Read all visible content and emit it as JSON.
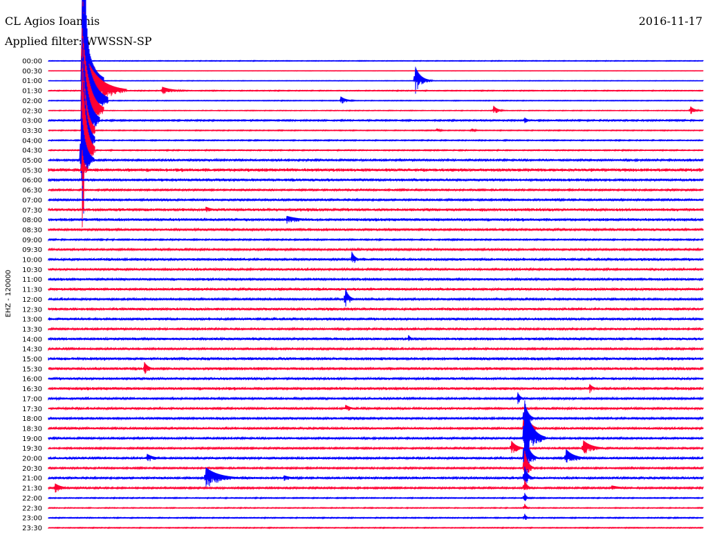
{
  "header": {
    "station": "CL Agios Ioannis",
    "filter": "Applied filter: WWSSN-SP",
    "date": "2016-11-17"
  },
  "chart_data": {
    "type": "line",
    "title": "CL Agios Ioannis",
    "channel_label": "EHZ - 120000",
    "trace_colors": [
      "#0000ff",
      "#ff0033"
    ],
    "time_axis": {
      "start": 0,
      "end": 30,
      "unit": "min"
    },
    "rows": [
      "00:00",
      "00:30",
      "01:00",
      "01:30",
      "02:00",
      "02:30",
      "03:00",
      "03:30",
      "04:00",
      "04:30",
      "05:00",
      "05:30",
      "06:00",
      "06:30",
      "07:00",
      "07:30",
      "08:00",
      "08:30",
      "09:00",
      "09:30",
      "10:00",
      "10:30",
      "11:00",
      "11:30",
      "12:00",
      "12:30",
      "13:00",
      "13:30",
      "14:00",
      "14:30",
      "15:00",
      "15:30",
      "16:00",
      "16:30",
      "17:00",
      "17:30",
      "18:00",
      "18:30",
      "19:00",
      "19:30",
      "20:00",
      "20:30",
      "21:00",
      "21:30",
      "22:00",
      "22:30",
      "23:00",
      "23:30"
    ],
    "noise": [
      0.4,
      0.2,
      0.3,
      0.5,
      0.4,
      0.4,
      0.8,
      0.5,
      0.6,
      0.6,
      1.2,
      1.8,
      1.5,
      1.0,
      1.2,
      1.6,
      1.6,
      1.4,
      0.8,
      1.2,
      1.4,
      1.3,
      1.4,
      1.4,
      1.3,
      1.4,
      1.4,
      1.2,
      1.4,
      1.2,
      1.6,
      1.6,
      1.4,
      1.6,
      1.2,
      1.2,
      1.4,
      1.2,
      1.2,
      1.0,
      1.2,
      1.0,
      1.2,
      1.0,
      0.6,
      0.5,
      0.6,
      0.5
    ],
    "events": [
      {
        "row": 0,
        "t": 1.6,
        "amp": 300,
        "dur": 0.3
      },
      {
        "row": 1,
        "t": 1.55,
        "amp": 120,
        "dur": 0.6
      },
      {
        "row": 2,
        "t": 1.55,
        "amp": 120,
        "dur": 1.0
      },
      {
        "row": 3,
        "t": 1.6,
        "amp": 60,
        "dur": 2.0
      },
      {
        "row": 4,
        "t": 1.55,
        "amp": 120,
        "dur": 1.2
      },
      {
        "row": 5,
        "t": 1.55,
        "amp": 120,
        "dur": 1.0
      },
      {
        "row": 6,
        "t": 1.55,
        "amp": 120,
        "dur": 0.8
      },
      {
        "row": 7,
        "t": 1.55,
        "amp": 120,
        "dur": 0.6
      },
      {
        "row": 8,
        "t": 1.55,
        "amp": 120,
        "dur": 0.6
      },
      {
        "row": 9,
        "t": 1.55,
        "amp": 120,
        "dur": 0.6
      },
      {
        "row": 10,
        "t": 1.5,
        "amp": 80,
        "dur": 0.6
      },
      {
        "row": 11,
        "t": 1.55,
        "amp": 30,
        "dur": 0.3
      },
      {
        "row": 2,
        "t": 16.8,
        "amp": 22,
        "dur": 0.8
      },
      {
        "row": 3,
        "t": 5.2,
        "amp": 6,
        "dur": 1.5
      },
      {
        "row": 4,
        "t": 13.4,
        "amp": 6,
        "dur": 0.8
      },
      {
        "row": 5,
        "t": 20.4,
        "amp": 7,
        "dur": 0.6
      },
      {
        "row": 5,
        "t": 29.4,
        "amp": 7,
        "dur": 0.6
      },
      {
        "row": 6,
        "t": 21.8,
        "amp": 5,
        "dur": 0.5
      },
      {
        "row": 7,
        "t": 17.8,
        "amp": 3,
        "dur": 0.5
      },
      {
        "row": 7,
        "t": 19.4,
        "amp": 3,
        "dur": 0.5
      },
      {
        "row": 15,
        "t": 7.2,
        "amp": 5,
        "dur": 1.0
      },
      {
        "row": 16,
        "t": 10.9,
        "amp": 6,
        "dur": 2.0
      },
      {
        "row": 20,
        "t": 13.9,
        "amp": 12,
        "dur": 0.5
      },
      {
        "row": 24,
        "t": 13.6,
        "amp": 18,
        "dur": 0.5
      },
      {
        "row": 28,
        "t": 16.5,
        "amp": 6,
        "dur": 0.4
      },
      {
        "row": 31,
        "t": 4.4,
        "amp": 10,
        "dur": 0.6
      },
      {
        "row": 34,
        "t": 21.5,
        "amp": 10,
        "dur": 0.4
      },
      {
        "row": 36,
        "t": 21.8,
        "amp": 30,
        "dur": 0.5
      },
      {
        "row": 37,
        "t": 21.8,
        "amp": 40,
        "dur": 0.6
      },
      {
        "row": 38,
        "t": 21.8,
        "amp": 60,
        "dur": 1.0
      },
      {
        "row": 39,
        "t": 21.2,
        "amp": 12,
        "dur": 0.8
      },
      {
        "row": 40,
        "t": 21.8,
        "amp": 50,
        "dur": 0.6
      },
      {
        "row": 41,
        "t": 21.8,
        "amp": 30,
        "dur": 0.5
      },
      {
        "row": 42,
        "t": 21.8,
        "amp": 20,
        "dur": 0.5
      },
      {
        "row": 43,
        "t": 21.8,
        "amp": 15,
        "dur": 0.4
      },
      {
        "row": 44,
        "t": 21.8,
        "amp": 10,
        "dur": 0.3
      },
      {
        "row": 45,
        "t": 21.8,
        "amp": 8,
        "dur": 0.3
      },
      {
        "row": 46,
        "t": 21.8,
        "amp": 8,
        "dur": 0.3
      },
      {
        "row": 39,
        "t": 24.5,
        "amp": 12,
        "dur": 1.3
      },
      {
        "row": 40,
        "t": 23.7,
        "amp": 14,
        "dur": 1.2
      },
      {
        "row": 40,
        "t": 4.5,
        "amp": 7,
        "dur": 1.0
      },
      {
        "row": 42,
        "t": 7.2,
        "amp": 16,
        "dur": 2.0
      },
      {
        "row": 42,
        "t": 10.8,
        "amp": 4,
        "dur": 1.2
      },
      {
        "row": 43,
        "t": 0.3,
        "amp": 7,
        "dur": 1.0
      },
      {
        "row": 43,
        "t": 25.8,
        "amp": 4,
        "dur": 1.5
      },
      {
        "row": 33,
        "t": 24.8,
        "amp": 7,
        "dur": 0.6
      },
      {
        "row": 35,
        "t": 13.6,
        "amp": 6,
        "dur": 0.8
      }
    ]
  }
}
